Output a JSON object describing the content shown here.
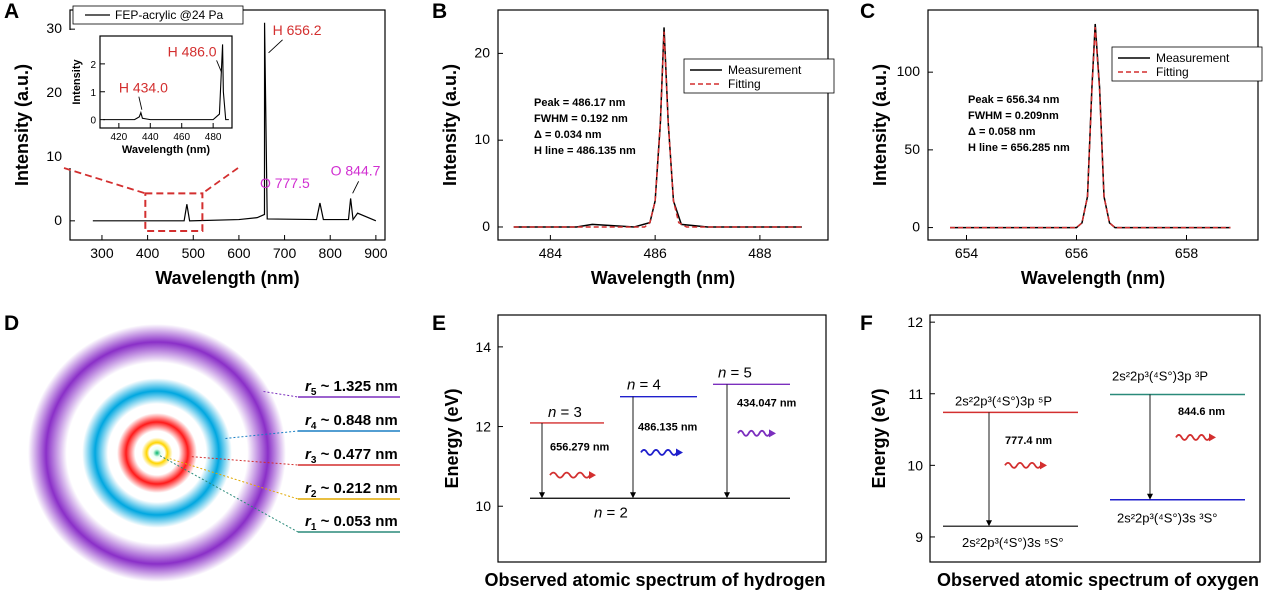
{
  "colors": {
    "red": "#d32f2f",
    "magenta": "#d12fd1",
    "blue": "#1f1fcc",
    "purple": "#7b2fbe",
    "teal": "#2a8a7a",
    "line": "#000000"
  },
  "panels": {
    "A": "A",
    "B": "B",
    "C": "C",
    "D": "D",
    "E": "E",
    "F": "F"
  },
  "chart_data": [
    {
      "panel": "A",
      "type": "line",
      "xlabel": "Wavelength (nm)",
      "ylabel": "Intensity (a.u.)",
      "xlim": [
        230,
        920
      ],
      "ylim": [
        -3,
        33
      ],
      "xticks": [
        300,
        400,
        500,
        600,
        700,
        800,
        900
      ],
      "yticks": [
        0,
        10,
        20,
        30
      ],
      "legend": "FEP-acrylic @24 Pa",
      "series": [
        {
          "name": "FEP-acrylic @24 Pa",
          "x": [
            280,
            480,
            486,
            492,
            600,
            640,
            656,
            656.2,
            662,
            770,
            777.5,
            785,
            840,
            844.7,
            850,
            860,
            900
          ],
          "y": [
            0,
            0,
            2.6,
            0,
            0.2,
            0.5,
            1,
            31,
            0.3,
            0.2,
            2.8,
            0.2,
            0.2,
            3.5,
            0.2,
            1.2,
            0
          ]
        }
      ],
      "annotations": [
        {
          "text": "H 656.2",
          "x": 656.2,
          "y": 31
        },
        {
          "text": "O 777.5",
          "x": 777.5,
          "y": 4.5
        },
        {
          "text": "O 844.7",
          "x": 844.7,
          "y": 6.5
        }
      ],
      "inset": {
        "xlabel": "Wavelength (nm)",
        "ylabel": "Intensity",
        "xlim": [
          408,
          492
        ],
        "ylim": [
          -0.3,
          3.0
        ],
        "xticks": [
          420,
          440,
          460,
          480
        ],
        "yticks": [
          0,
          1,
          2
        ],
        "x": [
          410,
          430,
          433,
          434,
          435,
          440,
          480,
          484,
          486,
          486.5,
          488,
          490
        ],
        "y": [
          0,
          0,
          0.1,
          0.25,
          0.05,
          0,
          0,
          0.2,
          2.7,
          1.0,
          0,
          0
        ],
        "annotations": [
          {
            "text": "H 434.0",
            "x": 434,
            "y": 0.25
          },
          {
            "text": "H 486.0",
            "x": 486,
            "y": 2.7
          }
        ]
      }
    },
    {
      "panel": "B",
      "type": "line",
      "xlabel": "Wavelength (nm)",
      "ylabel": "Intensity (a.u.)",
      "xlim": [
        483,
        489.3
      ],
      "ylim": [
        -1.5,
        25
      ],
      "xticks": [
        484,
        486,
        488
      ],
      "yticks": [
        0,
        10,
        20
      ],
      "series": [
        {
          "name": "Measurement",
          "x": [
            483.3,
            484.5,
            484.8,
            485.6,
            485.9,
            486.0,
            486.1,
            486.17,
            486.25,
            486.35,
            486.5,
            487,
            488.8
          ],
          "y": [
            0,
            0,
            0.3,
            0,
            0.5,
            3,
            12,
            23,
            12,
            3,
            0.3,
            0,
            0
          ]
        },
        {
          "name": "Fitting",
          "x": [
            483.3,
            485.8,
            485.9,
            486.0,
            486.1,
            486.17,
            486.25,
            486.35,
            486.45,
            486.6,
            488.8
          ],
          "y": [
            0,
            0,
            0.5,
            3,
            12,
            22.5,
            12,
            3,
            0.5,
            0,
            0
          ]
        }
      ],
      "annotation_lines": [
        "Peak = 486.17 nm",
        "FWHM = 0.192 nm",
        "Δ = 0.034 nm",
        "H line = 486.135 nm"
      ]
    },
    {
      "panel": "C",
      "type": "line",
      "xlabel": "Wavelength (nm)",
      "ylabel": "Intensity (a.u.)",
      "xlim": [
        653.3,
        659.3
      ],
      "ylim": [
        -8,
        140
      ],
      "xticks": [
        654,
        656,
        658
      ],
      "yticks": [
        0,
        50,
        100
      ],
      "series": [
        {
          "name": "Measurement",
          "x": [
            653.7,
            656.0,
            656.1,
            656.2,
            656.28,
            656.34,
            656.42,
            656.5,
            656.6,
            656.7,
            658.8
          ],
          "y": [
            0,
            0,
            3,
            20,
            90,
            131,
            90,
            20,
            3,
            0,
            0
          ]
        },
        {
          "name": "Fitting",
          "x": [
            653.7,
            656.0,
            656.1,
            656.2,
            656.28,
            656.34,
            656.42,
            656.5,
            656.6,
            656.7,
            658.8
          ],
          "y": [
            0,
            0,
            3,
            20,
            88,
            129,
            88,
            20,
            3,
            0,
            0
          ]
        }
      ],
      "annotation_lines": [
        "Peak = 656.34 nm",
        "FWHM = 0.209nm",
        "Δ = 0.058 nm",
        "H line = 656.285 nm"
      ]
    }
  ],
  "panelD": {
    "labels": [
      {
        "n": "5",
        "value": "~ 1.325 nm"
      },
      {
        "n": "4",
        "value": "~ 0.848 nm"
      },
      {
        "n": "3",
        "value": "~ 0.477 nm"
      },
      {
        "n": "2",
        "value": "~ 0.212 nm"
      },
      {
        "n": "1",
        "value": "~ 0.053 nm"
      }
    ]
  },
  "panelE": {
    "title": "Observed atomic spectrum of hydrogen",
    "ylabel": "Energy (eV)",
    "yticks": [
      10,
      12,
      14
    ],
    "levels": [
      {
        "label": "n = 3"
      },
      {
        "label": "n = 4"
      },
      {
        "label": "n = 5"
      },
      {
        "label": "n = 2"
      }
    ],
    "level_energies": {
      "n2": 10.2,
      "n3": 12.09,
      "n4": 12.75,
      "n5": 13.06
    },
    "transitions": [
      "656.279 nm",
      "486.135 nm",
      "434.047 nm"
    ]
  },
  "panelF": {
    "title": "Observed atomic spectrum of oxygen",
    "ylabel": "Energy (eV)",
    "yticks": [
      9,
      10,
      11,
      12
    ],
    "level_energies": {
      "upper1": 10.74,
      "upper2": 10.99,
      "lower1": 9.15,
      "lower2": 9.52
    },
    "upper1": "2s²2p³(⁴S°)3p ⁵P",
    "upper2": "2s²2p³(⁴S°)3p ³P",
    "lower1": "2s²2p³(⁴S°)3s ⁵S°",
    "lower2": "2s²2p³(⁴S°)3s ³S°",
    "transitions": [
      "777.4 nm",
      "844.6 nm"
    ]
  }
}
